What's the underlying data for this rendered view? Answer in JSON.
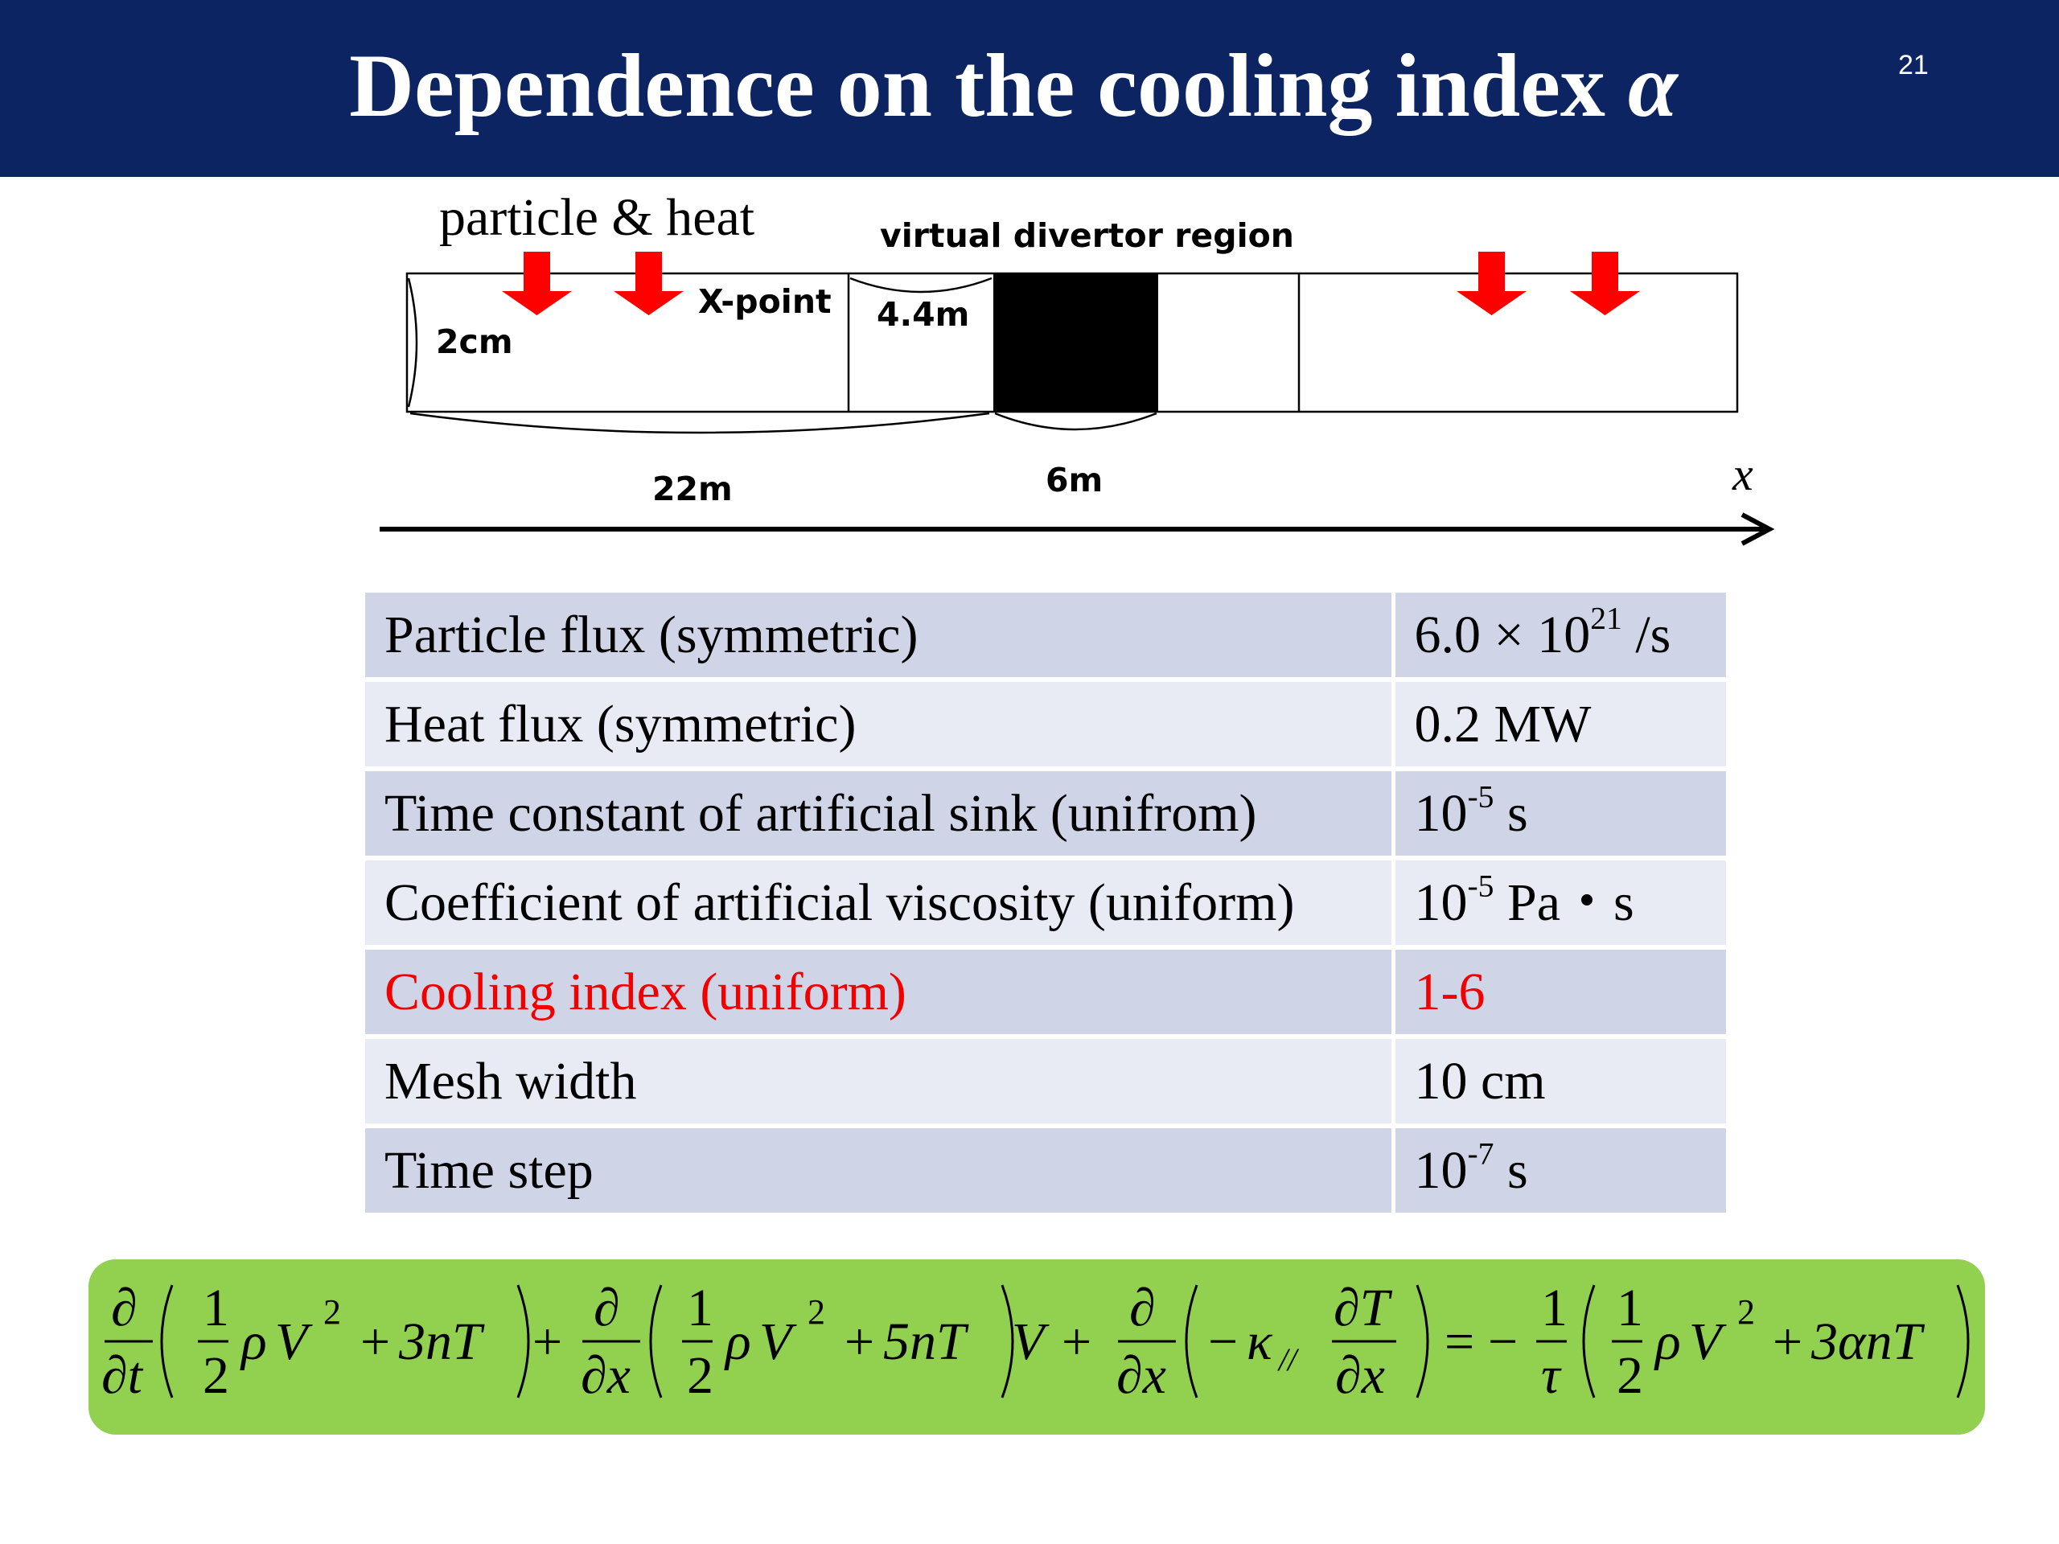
{
  "slide": {
    "title_text": "Dependence on the cooling index ",
    "title_symbol": "α",
    "page_number": "21"
  },
  "diagram": {
    "source_label": "particle & heat",
    "region_label": "virtual divertor region",
    "xpoint_label": "X-point",
    "height_label": "2cm",
    "leg_label": "4.4m",
    "total_label": "22m",
    "divertor_label": "6m",
    "axis_label": "x",
    "arrow_color": "#ff0000",
    "divertor_color": "#000000"
  },
  "table": {
    "rows": [
      {
        "label": "Particle flux (symmetric)",
        "value": "6.0 × 10",
        "sup": "21",
        "value_tail": " /s",
        "highlight": false
      },
      {
        "label": "Heat flux (symmetric)",
        "value": "0.2 MW",
        "sup": "",
        "value_tail": "",
        "highlight": false
      },
      {
        "label": "Time constant of artificial sink (unifrom)",
        "value": "10",
        "sup": "-5",
        "value_tail": " s",
        "highlight": false
      },
      {
        "label": "Coefficient of artificial viscosity (uniform)",
        "value": "10",
        "sup": "-5",
        "value_tail": " Pa・s",
        "highlight": false
      },
      {
        "label": "Cooling index (uniform)",
        "value": "1-6",
        "sup": "",
        "value_tail": "",
        "highlight": true
      },
      {
        "label": "Mesh width",
        "value": "10 cm",
        "sup": "",
        "value_tail": "",
        "highlight": false
      },
      {
        "label": "Time step",
        "value": "10",
        "sup": "-7",
        "value_tail": " s",
        "highlight": false
      }
    ],
    "highlight_color": "#ff0000"
  },
  "equation": {
    "d": "∂",
    "dt": "∂t",
    "dx": "∂x",
    "one": "1",
    "two": "2",
    "rho": "ρ",
    "V": "V",
    "sq": "2",
    "plus": "+",
    "t3nT": "3nT",
    "t5nT": "5nT",
    "minus": "−",
    "kappa": "κ",
    "par": "//",
    "dT": "∂T",
    "eq": "=",
    "neg": "−",
    "tau": "τ",
    "t3anT": "3αnT",
    "box_color": "#92d050"
  }
}
